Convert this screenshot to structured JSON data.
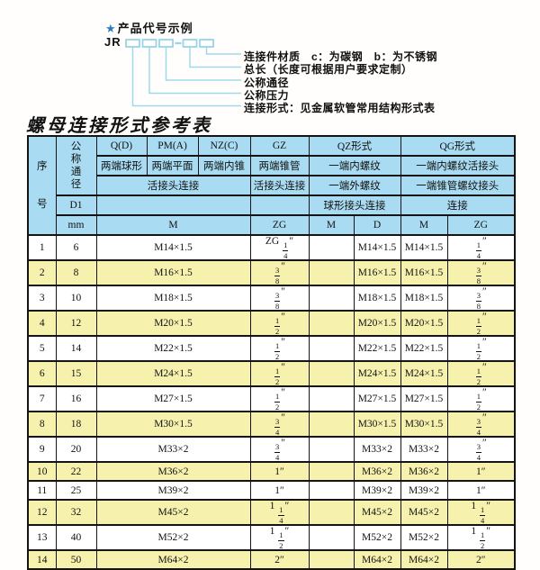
{
  "colors": {
    "header_bg": "#a9dcf2",
    "alt_bg": "#f6f2ae",
    "row_bg": "#ffffff",
    "border_color": "#141414",
    "line_color": "#96d6e8",
    "star_color": "#2b7cc0"
  },
  "diagram": {
    "star": "★",
    "title": "产品代号示例",
    "code_prefix": "JR",
    "labels": [
      "连接件材质　c：为碳钢　b：为不锈钢",
      "总长（长度可根据用户要求定制）",
      "公称通径",
      "公称压力",
      "连接形式：见金属软管常用结构形式表"
    ]
  },
  "table": {
    "title": "螺母连接形式参考表",
    "header": {
      "seq": "序\n号",
      "dn": "公\n称\n通\n径",
      "d1": "D1",
      "mm": "mm",
      "q": "Q(D)",
      "q_desc": "两端球形",
      "pm": "PM(A)",
      "pm_desc": "两端平面",
      "nz": "NZ(C)",
      "nz_desc": "两端内锥",
      "gz": "GZ",
      "gz_desc": "两端锥管",
      "qz": "QZ形式",
      "qz_desc1": "一端内螺纹",
      "qz_desc2": "一端外螺纹",
      "qz_desc3": "球形接头连接",
      "qg": "QG形式",
      "qg_desc1": "一端内螺纹活接头",
      "qg_desc2": "一端锥管螺纹接头",
      "qg_desc3": "连接",
      "union_q": "活接头连接",
      "union_gz": "活接头连接",
      "m": "M",
      "zg": "ZG",
      "qz_m": "M",
      "qz_d": "D",
      "qg_m": "M",
      "qg_zg": "ZG"
    },
    "rows": [
      {
        "seq": "1",
        "dn": "6",
        "m": "M14×1.5",
        "gz": "ZG 1/4″",
        "qz_m": "",
        "qz_d": "M14×1.5",
        "qg_m": "M14×1.5",
        "qg_zg": "1/4″"
      },
      {
        "seq": "2",
        "dn": "8",
        "m": "M16×1.5",
        "gz": "3/8″",
        "qz_m": "",
        "qz_d": "M16×1.5",
        "qg_m": "M16×1.5",
        "qg_zg": "3/8″"
      },
      {
        "seq": "3",
        "dn": "10",
        "m": "M18×1.5",
        "gz": "3/8″",
        "qz_m": "",
        "qz_d": "M18×1.5",
        "qg_m": "M18×1.5",
        "qg_zg": "3/8″"
      },
      {
        "seq": "4",
        "dn": "12",
        "m": "M20×1.5",
        "gz": "1/2″",
        "qz_m": "",
        "qz_d": "M20×1.5",
        "qg_m": "M20×1.5",
        "qg_zg": "1/2″"
      },
      {
        "seq": "5",
        "dn": "14",
        "m": "M22×1.5",
        "gz": "1/2″",
        "qz_m": "",
        "qz_d": "M22×1.5",
        "qg_m": "M22×1.5",
        "qg_zg": "1/2″"
      },
      {
        "seq": "6",
        "dn": "15",
        "m": "M24×1.5",
        "gz": "1/2″",
        "qz_m": "",
        "qz_d": "M24×1.5",
        "qg_m": "M24×1.5",
        "qg_zg": "1/2″"
      },
      {
        "seq": "7",
        "dn": "16",
        "m": "M27×1.5",
        "gz": "1/2″",
        "qz_m": "",
        "qz_d": "M27×1.5",
        "qg_m": "M27×1.5",
        "qg_zg": "1/2″"
      },
      {
        "seq": "8",
        "dn": "18",
        "m": "M30×1.5",
        "gz": "3/4″",
        "qz_m": "",
        "qz_d": "M30×1.5",
        "qg_m": "M30×1.5",
        "qg_zg": "3/4″"
      },
      {
        "seq": "9",
        "dn": "20",
        "m": "M33×2",
        "gz": "3/4″",
        "qz_m": "",
        "qz_d": "M33×2",
        "qg_m": "M33×2",
        "qg_zg": "3/4″"
      },
      {
        "seq": "10",
        "dn": "22",
        "m": "M36×2",
        "gz": "1″",
        "qz_m": "",
        "qz_d": "M36×2",
        "qg_m": "M36×2",
        "qg_zg": "1″"
      },
      {
        "seq": "11",
        "dn": "25",
        "m": "M39×2",
        "gz": "1″",
        "qz_m": "",
        "qz_d": "M39×2",
        "qg_m": "M39×2",
        "qg_zg": "1″"
      },
      {
        "seq": "12",
        "dn": "32",
        "m": "M45×2",
        "gz": "1 1/4″",
        "qz_m": "",
        "qz_d": "M45×2",
        "qg_m": "M45×2",
        "qg_zg": "1 1/4″"
      },
      {
        "seq": "13",
        "dn": "40",
        "m": "M52×2",
        "gz": "1 1/2″",
        "qz_m": "",
        "qz_d": "M52×2",
        "qg_m": "M52×2",
        "qg_zg": "1 1/2″"
      },
      {
        "seq": "14",
        "dn": "50",
        "m": "M64×2",
        "gz": "2″",
        "qz_m": "",
        "qz_d": "M64×2",
        "qg_m": "M64×2",
        "qg_zg": "2″"
      }
    ]
  }
}
